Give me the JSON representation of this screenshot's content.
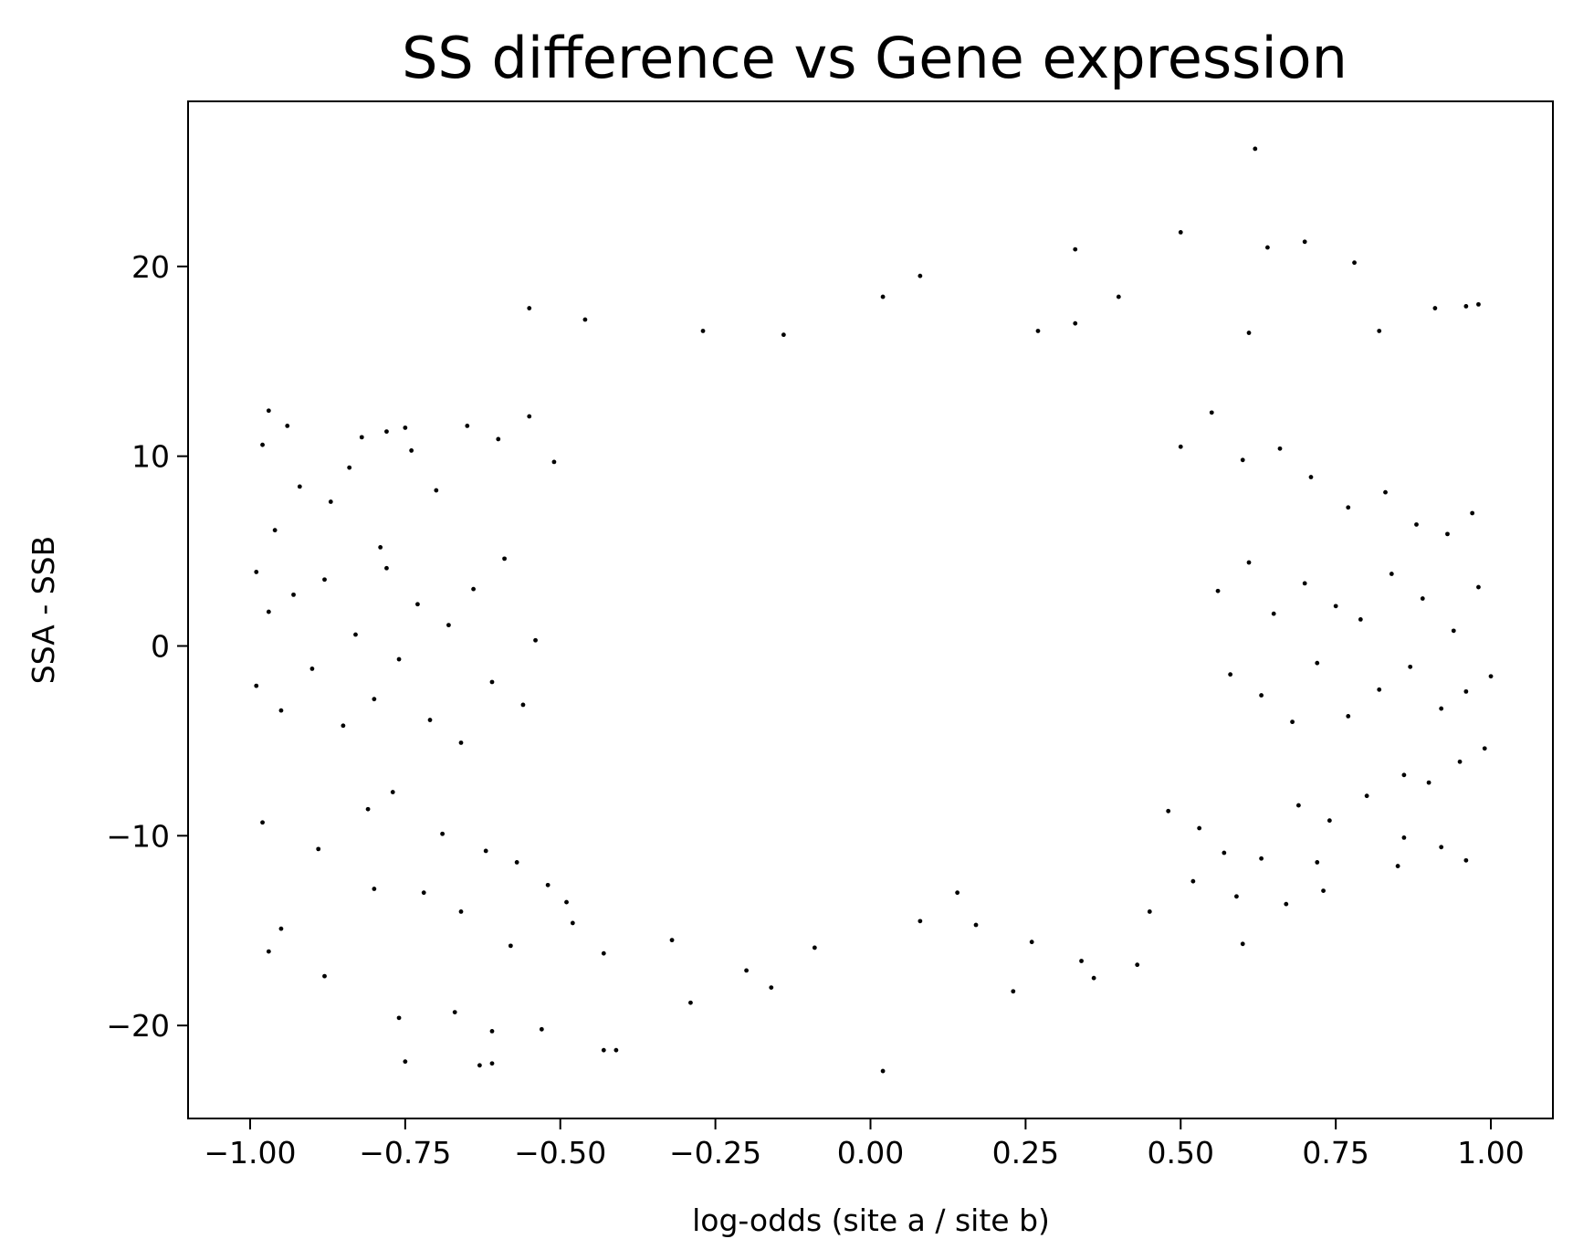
{
  "chart_data": {
    "type": "scatter",
    "title": "SS difference vs Gene expression",
    "xlabel": "log-odds (site a / site b)",
    "ylabel": "SSA - SSB",
    "xlim": [
      -1.1,
      1.1
    ],
    "ylim": [
      -24.9,
      28.7
    ],
    "x_ticks": [
      -1.0,
      -0.75,
      -0.5,
      -0.25,
      0.0,
      0.25,
      0.5,
      0.75,
      1.0
    ],
    "x_tick_labels": [
      "−1.00",
      "−0.75",
      "−0.50",
      "−0.25",
      "0.00",
      "0.25",
      "0.50",
      "0.75",
      "1.00"
    ],
    "y_ticks": [
      -20,
      -10,
      0,
      10,
      20
    ],
    "y_tick_labels": [
      "−20",
      "−10",
      "0",
      "10",
      "20"
    ],
    "grid": false,
    "legend": "none",
    "marker_color": "#000000",
    "series": [
      {
        "description_of_distribution": "",
        "x": [
          0.62,
          -0.75,
          0.7,
          0.5,
          0.64,
          0.78,
          0.08,
          0.02,
          -0.55,
          -0.46,
          -0.14,
          0.4,
          -0.61,
          -0.67,
          -0.43,
          0.96,
          0.98,
          -0.97,
          -0.94,
          -0.98,
          -0.27,
          0.61,
          0.27,
          0.33,
          -0.82,
          -0.78,
          0.33,
          0.82,
          0.91,
          -0.63,
          -0.75,
          -0.61,
          -0.53,
          -0.41,
          -0.29,
          -0.2,
          0.02,
          0.23,
          0.36,
          0.43,
          0.6,
          0.73,
          0.85,
          0.92,
          0.96,
          -0.97,
          -0.95,
          -0.88,
          -0.76,
          -0.72,
          -0.66,
          -0.58,
          -0.48,
          -0.43,
          -0.32,
          -0.16,
          -0.09,
          0.08,
          0.14,
          0.17,
          0.26,
          0.34,
          0.45,
          0.52,
          0.59,
          0.67,
          0.72,
          0.86,
          -0.99,
          -0.98,
          -0.96,
          -0.92,
          -0.89,
          -0.87,
          -0.84,
          -0.81,
          -0.8,
          -0.79,
          -0.77,
          -0.74,
          -0.7,
          -0.69,
          -0.65,
          -0.62,
          -0.6,
          -0.57,
          -0.55,
          -0.52,
          -0.51,
          -0.49,
          0.48,
          0.5,
          0.53,
          0.55,
          0.57,
          0.6,
          0.63,
          0.66,
          0.69,
          0.71,
          0.74,
          0.77,
          0.8,
          0.83,
          0.86,
          0.88,
          0.9,
          0.93,
          0.95,
          0.97,
          0.99,
          -0.99,
          -0.97,
          -0.95,
          -0.93,
          -0.9,
          -0.88,
          -0.85,
          -0.83,
          -0.8,
          -0.78,
          -0.76,
          -0.73,
          -0.71,
          -0.68,
          -0.66,
          -0.64,
          -0.61,
          -0.59,
          -0.56,
          -0.54,
          0.56,
          0.58,
          0.61,
          0.63,
          0.65,
          0.68,
          0.7,
          0.72,
          0.75,
          0.77,
          0.79,
          0.82,
          0.84,
          0.87,
          0.89,
          0.92,
          0.94,
          0.96,
          0.98,
          1.0
        ],
        "y": [
          26.2,
          11.5,
          21.3,
          21.8,
          21.0,
          20.2,
          19.5,
          18.4,
          17.8,
          17.2,
          16.4,
          18.4,
          -22.0,
          -19.3,
          -21.3,
          17.9,
          18.0,
          12.4,
          11.6,
          10.6,
          16.6,
          16.5,
          16.6,
          17.0,
          11.0,
          11.3,
          20.9,
          16.6,
          17.8,
          -22.1,
          -21.9,
          -20.3,
          -20.2,
          -21.3,
          -18.8,
          -17.1,
          -22.4,
          -18.2,
          -17.5,
          -16.8,
          -15.7,
          -12.9,
          -11.6,
          -10.6,
          -11.3,
          -16.1,
          -14.9,
          -17.4,
          -19.6,
          -13.0,
          -14.0,
          -15.8,
          -14.6,
          -16.2,
          -15.5,
          -18.0,
          -15.9,
          -14.5,
          -13.0,
          -14.7,
          -15.6,
          -16.6,
          -14.0,
          -12.4,
          -13.2,
          -13.6,
          -11.4,
          -10.1,
          3.9,
          -9.3,
          6.1,
          8.4,
          -10.7,
          7.6,
          9.4,
          -8.6,
          -12.8,
          5.2,
          -7.7,
          10.3,
          8.2,
          -9.9,
          11.6,
          -10.8,
          10.9,
          -11.4,
          12.1,
          -12.6,
          9.7,
          -13.5,
          -8.7,
          10.5,
          -9.6,
          12.3,
          -10.9,
          9.8,
          -11.2,
          10.4,
          -8.4,
          8.9,
          -9.2,
          7.3,
          -7.9,
          8.1,
          -6.8,
          6.4,
          -7.2,
          5.9,
          -6.1,
          7.0,
          -5.4,
          -2.1,
          1.8,
          -3.4,
          2.7,
          -1.2,
          3.5,
          -4.2,
          0.6,
          -2.8,
          4.1,
          -0.7,
          2.2,
          -3.9,
          1.1,
          -5.1,
          3.0,
          -1.9,
          4.6,
          -3.1,
          0.3,
          2.9,
          -1.5,
          4.4,
          -2.6,
          1.7,
          -4.0,
          3.3,
          -0.9,
          2.1,
          -3.7,
          1.4,
          -2.3,
          3.8,
          -1.1,
          2.5,
          -3.3,
          0.8,
          -2.4,
          3.1,
          -1.6
        ]
      }
    ]
  }
}
